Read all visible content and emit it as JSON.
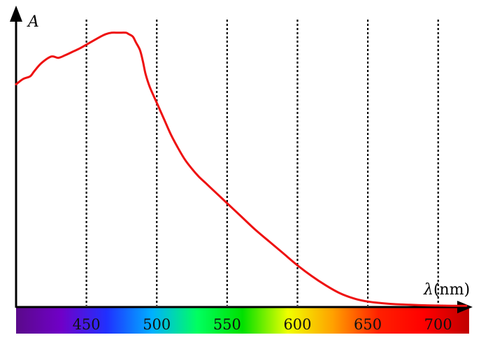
{
  "chart_data": {
    "type": "line",
    "title": "",
    "xlabel_symbol": "λ",
    "xlabel_unit": "(nm)",
    "ylabel": "A",
    "xlim": [
      400,
      722
    ],
    "ylim": [
      0,
      1
    ],
    "grid": "vertical dotted lines at tick positions",
    "x_ticks": [
      {
        "value": 450,
        "label": "450"
      },
      {
        "value": 500,
        "label": "500"
      },
      {
        "value": 550,
        "label": "550"
      },
      {
        "value": 600,
        "label": "600"
      },
      {
        "value": 650,
        "label": "650"
      },
      {
        "value": 700,
        "label": "700"
      }
    ],
    "series": [
      {
        "color": "#ee1111",
        "x": [
          400,
          405,
          410,
          413,
          418,
          425,
          430,
          435,
          441,
          445,
          450,
          455,
          460,
          464,
          468,
          473,
          478,
          480,
          483,
          485,
          488,
          490,
          492,
          495,
          500,
          505,
          510,
          515,
          520,
          525,
          530,
          535,
          540,
          550,
          560,
          570,
          580,
          590,
          600,
          610,
          620,
          630,
          640,
          650,
          660,
          670,
          680,
          690,
          700,
          710,
          720
        ],
        "y": [
          0.84,
          0.86,
          0.87,
          0.89,
          0.92,
          0.945,
          0.94,
          0.95,
          0.965,
          0.975,
          0.99,
          1.005,
          1.02,
          1.03,
          1.035,
          1.035,
          1.035,
          1.03,
          1.02,
          1.0,
          0.97,
          0.93,
          0.88,
          0.83,
          0.77,
          0.71,
          0.65,
          0.6,
          0.555,
          0.52,
          0.49,
          0.465,
          0.44,
          0.39,
          0.34,
          0.29,
          0.245,
          0.2,
          0.155,
          0.115,
          0.08,
          0.05,
          0.03,
          0.018,
          0.012,
          0.008,
          0.006,
          0.004,
          0.003,
          0.002,
          0.002
        ]
      }
    ],
    "colors": {
      "curve": "#ee1111",
      "axis": "#000000",
      "grid": "#000000"
    },
    "spectrum_bar": {
      "stops": [
        "#5a0a8a",
        "#7000c8",
        "#2030ff",
        "#00b0ff",
        "#00ff60",
        "#00e000",
        "#f0ff00",
        "#ffa000",
        "#ff2000",
        "#ff0000",
        "#c00000"
      ]
    }
  }
}
